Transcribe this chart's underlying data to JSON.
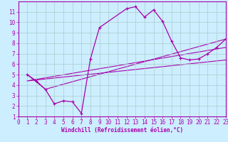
{
  "xlabel": "Windchill (Refroidissement éolien,°C)",
  "bg_color": "#cceeff",
  "line_color": "#aa00aa",
  "grid_color": "#aacccc",
  "xlim": [
    0,
    23
  ],
  "ylim": [
    1,
    12
  ],
  "xticks": [
    0,
    1,
    2,
    3,
    4,
    5,
    6,
    7,
    8,
    9,
    10,
    11,
    12,
    13,
    14,
    15,
    16,
    17,
    18,
    19,
    20,
    21,
    22,
    23
  ],
  "yticks": [
    1,
    2,
    3,
    4,
    5,
    6,
    7,
    8,
    9,
    10,
    11
  ],
  "line1_x": [
    1,
    2,
    3,
    4,
    5,
    6,
    7,
    8,
    9,
    12,
    13,
    14,
    15,
    16,
    17,
    18,
    19,
    20,
    21,
    22,
    23
  ],
  "line1_y": [
    5.0,
    4.4,
    3.6,
    2.2,
    2.5,
    2.4,
    1.3,
    6.5,
    9.5,
    11.3,
    11.5,
    10.5,
    11.2,
    10.1,
    8.2,
    6.6,
    6.4,
    6.5,
    7.0,
    7.6,
    8.4
  ],
  "line2_x": [
    1,
    3,
    23
  ],
  "line2_y": [
    5.0,
    3.6,
    8.4
  ],
  "line3_x": [
    1,
    23
  ],
  "line3_y": [
    4.4,
    7.6
  ],
  "line4_x": [
    1,
    23
  ],
  "line4_y": [
    4.4,
    6.4
  ]
}
